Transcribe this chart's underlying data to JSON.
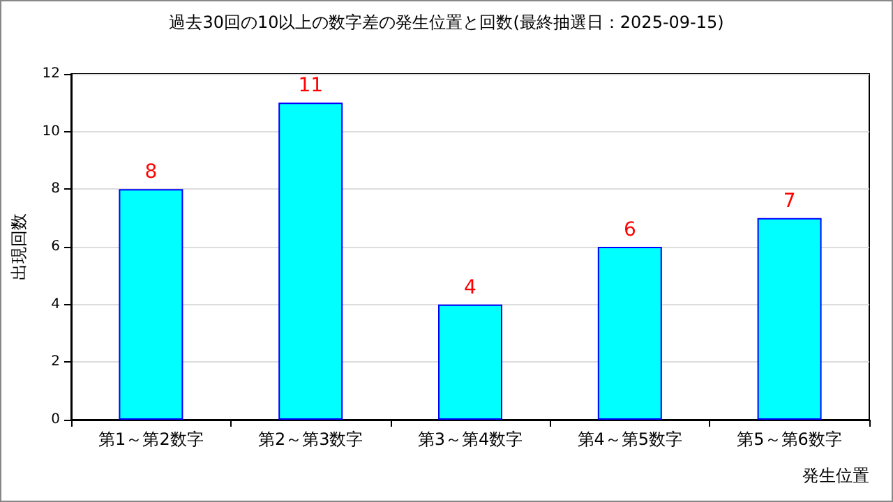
{
  "chart_data": {
    "type": "bar",
    "title": "過去30回の10以上の数字差の発生位置と回数(最終抽選日：2025-09-15)",
    "xlabel": "発生位置",
    "ylabel": "出現回数",
    "categories": [
      "第1～第2数字",
      "第2～第3数字",
      "第3～第4数字",
      "第4～第5数字",
      "第5～第6数字"
    ],
    "values": [
      8,
      11,
      4,
      6,
      7
    ],
    "color": "#00ffff",
    "ylim": [
      0,
      12
    ],
    "yticks": [
      0,
      2,
      4,
      6,
      8,
      10,
      12
    ],
    "grid": "y",
    "data_labels": true
  }
}
